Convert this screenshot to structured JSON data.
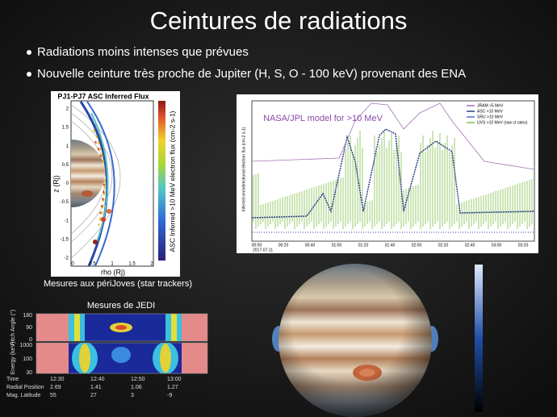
{
  "title": "Ceintures de radiations",
  "bullets": [
    "Radiations moins intenses que prévues",
    "Nouvelle ceinture très proche de Jupiter (H, S, O - 100 keV) provenant des ENA"
  ],
  "figure_left": {
    "title": "PJ1-PJ7 ASC Inferred Flux",
    "x_label": "rho (Rj)",
    "y_label": "z (Rj)",
    "colorbar_label": "ASC Inferred >10 MeV electron flux (cm-2 s-1)",
    "xticks": [
      "0",
      "0.5",
      "1",
      "1.5",
      "2"
    ],
    "yticks": [
      "2",
      "1.5",
      "1",
      "0.5",
      "0",
      "-0.5",
      "-1",
      "-1.5",
      "-2"
    ],
    "caption": "Mesures aux périJoves (star trackers)"
  },
  "figure_model": {
    "annotation": "NASA/JPL model for >10 MeV",
    "y_label": "Inferred omnidirectional electron flux (cm-2 s-1)",
    "legend": [
      "JRAM >5 MeV",
      "ASC >10 MeV",
      "SRU >10 MeV",
      "UVS >10 MeV (raw ct rates)"
    ],
    "xticks": [
      "00:00",
      "00:20",
      "00:40",
      "01:00",
      "01:20",
      "01:40",
      "02:00",
      "02:20",
      "02:40",
      "03:00",
      "03:20"
    ],
    "date": "2017-07-11"
  },
  "figure_jedi": {
    "title": "Mesures de JEDI",
    "pitch_label": "Pitch Angle (°)",
    "energy_label": "Energy (keV)",
    "pitch_ticks": [
      "180",
      "90",
      "0"
    ],
    "energy_ticks": [
      "1000",
      "100",
      "30"
    ],
    "rows": [
      [
        "Time",
        "12:30",
        "12:40",
        "12:50",
        "13:00"
      ],
      [
        "Radial Position",
        "2.69",
        "1.41",
        "1.06",
        "1.27"
      ],
      [
        "Mag. Latitude",
        "55",
        "27",
        "3",
        "-9"
      ]
    ]
  }
}
